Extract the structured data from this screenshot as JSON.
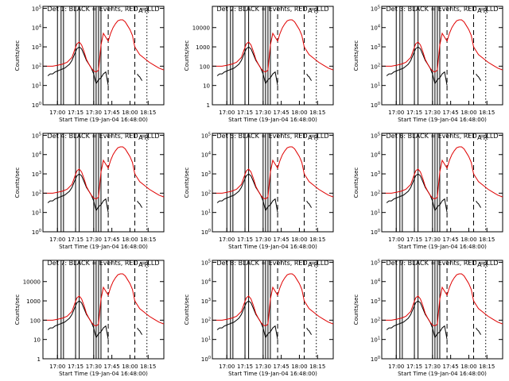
{
  "panels": [
    {
      "title": "Det 1: BLACK = Events, RED = LLD",
      "ylabel": "Counts/sec",
      "xlabel": "Start Time (19-Jan-04 16:48:00)",
      "yticks": [
        {
          "v": 0,
          "base": "10",
          "exp": "0"
        },
        {
          "v": 1,
          "base": "10",
          "exp": "1"
        },
        {
          "v": 2,
          "base": "10",
          "exp": "2"
        },
        {
          "v": 3,
          "base": "10",
          "exp": "3"
        },
        {
          "v": 4,
          "base": "10",
          "exp": "4"
        },
        {
          "v": 5,
          "base": "10",
          "exp": "5"
        }
      ],
      "legend_marks": [
        "A",
        "R"
      ]
    },
    {
      "title": "Det 2: BLACK = Events, RED = LLD",
      "ylabel": "Counts/sec",
      "xlabel": "Start Time (19-Jan-04 16:48:00)",
      "yticks": [
        {
          "v": 0,
          "base": "1",
          "exp": ""
        },
        {
          "v": 1,
          "base": "10",
          "exp": ""
        },
        {
          "v": 2,
          "base": "100",
          "exp": ""
        },
        {
          "v": 3,
          "base": "1000",
          "exp": ""
        },
        {
          "v": 4,
          "base": "10000",
          "exp": ""
        }
      ],
      "legend_marks": [
        "A",
        "R"
      ]
    },
    {
      "title": "Det 3: BLACK = Events, RED = LLD",
      "ylabel": "Counts/sec",
      "xlabel": "Start Time (19-Jan-04 16:48:00)",
      "yticks": [
        {
          "v": 0,
          "base": "10",
          "exp": "0"
        },
        {
          "v": 1,
          "base": "10",
          "exp": "1"
        },
        {
          "v": 2,
          "base": "10",
          "exp": "2"
        },
        {
          "v": 3,
          "base": "10",
          "exp": "3"
        },
        {
          "v": 4,
          "base": "10",
          "exp": "4"
        },
        {
          "v": 5,
          "base": "10",
          "exp": "5"
        }
      ],
      "legend_marks": [
        "A",
        "R"
      ]
    },
    {
      "title": "Det 4: BLACK = Events, RED = LLD",
      "ylabel": "Counts/sec",
      "xlabel": "Start Time (19-Jan-04 16:48:00)",
      "yticks": [
        {
          "v": 0,
          "base": "10",
          "exp": "0"
        },
        {
          "v": 1,
          "base": "10",
          "exp": "1"
        },
        {
          "v": 2,
          "base": "10",
          "exp": "2"
        },
        {
          "v": 3,
          "base": "10",
          "exp": "3"
        },
        {
          "v": 4,
          "base": "10",
          "exp": "4"
        },
        {
          "v": 5,
          "base": "10",
          "exp": "5"
        }
      ],
      "legend_marks": [
        "A",
        "R"
      ]
    },
    {
      "title": "Det 5: BLACK = Events, RED = LLD",
      "ylabel": "Counts/sec",
      "xlabel": "Start Time (19-Jan-04 16:48:00)",
      "yticks": [
        {
          "v": 0,
          "base": "10",
          "exp": "0"
        },
        {
          "v": 1,
          "base": "10",
          "exp": "1"
        },
        {
          "v": 2,
          "base": "10",
          "exp": "2"
        },
        {
          "v": 3,
          "base": "10",
          "exp": "3"
        },
        {
          "v": 4,
          "base": "10",
          "exp": "4"
        },
        {
          "v": 5,
          "base": "10",
          "exp": "5"
        }
      ],
      "legend_marks": [
        "A",
        "R"
      ]
    },
    {
      "title": "Det 6: BLACK = Events, RED = LLD",
      "ylabel": "Counts/sec",
      "xlabel": "Start Time (19-Jan-04 16:48:00)",
      "yticks": [
        {
          "v": 0,
          "base": "10",
          "exp": "0"
        },
        {
          "v": 1,
          "base": "10",
          "exp": "1"
        },
        {
          "v": 2,
          "base": "10",
          "exp": "2"
        },
        {
          "v": 3,
          "base": "10",
          "exp": "3"
        },
        {
          "v": 4,
          "base": "10",
          "exp": "4"
        },
        {
          "v": 5,
          "base": "10",
          "exp": "5"
        }
      ],
      "legend_marks": [
        "A",
        "R"
      ]
    },
    {
      "title": "Det 7: BLACK = Events, RED = LLD",
      "ylabel": "Counts/sec",
      "xlabel": "Start Time (19-Jan-04 16:48:00)",
      "yticks": [
        {
          "v": 0,
          "base": "1",
          "exp": ""
        },
        {
          "v": 1,
          "base": "10",
          "exp": ""
        },
        {
          "v": 2,
          "base": "100",
          "exp": ""
        },
        {
          "v": 3,
          "base": "1000",
          "exp": ""
        },
        {
          "v": 4,
          "base": "10000",
          "exp": ""
        }
      ],
      "legend_marks": [
        "A",
        "R"
      ]
    },
    {
      "title": "Det 8: BLACK = Events, RED = LLD",
      "ylabel": "Counts/sec",
      "xlabel": "Start Time (19-Jan-04 16:48:00)",
      "yticks": [
        {
          "v": 0,
          "base": "10",
          "exp": "0"
        },
        {
          "v": 1,
          "base": "10",
          "exp": "1"
        },
        {
          "v": 2,
          "base": "10",
          "exp": "2"
        },
        {
          "v": 3,
          "base": "10",
          "exp": "3"
        },
        {
          "v": 4,
          "base": "10",
          "exp": "4"
        },
        {
          "v": 5,
          "base": "10",
          "exp": "5"
        }
      ],
      "legend_marks": [
        "A",
        "R"
      ]
    },
    {
      "title": "Det 9: BLACK = Events, RED = LLD",
      "ylabel": "Counts/sec",
      "xlabel": "Start Time (19-Jan-04 16:48:00)",
      "yticks": [
        {
          "v": 0,
          "base": "10",
          "exp": "0"
        },
        {
          "v": 1,
          "base": "10",
          "exp": "1"
        },
        {
          "v": 2,
          "base": "10",
          "exp": "2"
        },
        {
          "v": 3,
          "base": "10",
          "exp": "3"
        },
        {
          "v": 4,
          "base": "10",
          "exp": "4"
        },
        {
          "v": 5,
          "base": "10",
          "exp": "5"
        }
      ],
      "legend_marks": [
        "A",
        "R"
      ]
    }
  ],
  "chart_data": {
    "type": "line",
    "xlim_minutes_after_start": [
      0,
      100
    ],
    "x_ticks": [
      {
        "label": "17:00",
        "minutes_after_start": 12
      },
      {
        "label": "17:15",
        "minutes_after_start": 27
      },
      {
        "label": "17:30",
        "minutes_after_start": 42
      },
      {
        "label": "17:45",
        "minutes_after_start": 57
      },
      {
        "label": "18:00",
        "minutes_after_start": 72
      },
      {
        "label": "18:15",
        "minutes_after_start": 87
      }
    ],
    "y_scale": "log",
    "ylim_log10": [
      0,
      5.1
    ],
    "solid_vertical_lines_minutes": [
      12,
      15,
      17,
      27,
      30,
      42,
      44,
      46,
      48
    ],
    "dashed_vertical_lines_minutes": [
      54,
      76
    ],
    "dotted_vertical_lines_minutes": [
      86
    ],
    "series": [
      {
        "name": "BLACK = Events",
        "color": "#000000",
        "x": [
          4,
          6,
          8,
          10,
          12,
          14,
          16,
          18,
          20,
          22,
          24,
          26,
          28,
          30,
          32,
          34,
          36,
          38,
          40,
          42,
          44,
          46,
          48,
          50,
          52,
          54
        ],
        "y_log10": [
          1.5,
          1.6,
          1.6,
          1.7,
          1.75,
          1.8,
          1.85,
          1.9,
          2.0,
          2.1,
          2.3,
          2.6,
          2.9,
          3.0,
          2.9,
          2.6,
          2.3,
          2.1,
          1.9,
          1.6,
          1.1,
          1.3,
          1.4,
          1.6,
          1.7,
          1.0
        ]
      },
      {
        "name": "RED = LLD",
        "color": "#e00000",
        "x": [
          0,
          4,
          8,
          12,
          16,
          20,
          24,
          26,
          28,
          30,
          32,
          34,
          36,
          38,
          40,
          42,
          44,
          46,
          48,
          50,
          52,
          54,
          56,
          58,
          60,
          62,
          64,
          66,
          68,
          70,
          72,
          74,
          76,
          80,
          84,
          88,
          92,
          96,
          100
        ],
        "y_log10": [
          2.0,
          2.0,
          2.0,
          2.05,
          2.1,
          2.2,
          2.45,
          2.8,
          3.15,
          3.25,
          3.1,
          2.75,
          2.35,
          2.1,
          1.9,
          1.75,
          1.7,
          1.8,
          3.1,
          3.7,
          3.5,
          3.3,
          3.7,
          4.0,
          4.2,
          4.35,
          4.4,
          4.4,
          4.3,
          4.1,
          3.9,
          3.6,
          3.0,
          2.6,
          2.4,
          2.2,
          2.05,
          1.9,
          1.8
        ]
      }
    ],
    "post_gap_segment": {
      "x": [
        78,
        79,
        80,
        81,
        82
      ],
      "y_log10": [
        1.6,
        1.5,
        1.45,
        1.35,
        1.25
      ]
    }
  }
}
